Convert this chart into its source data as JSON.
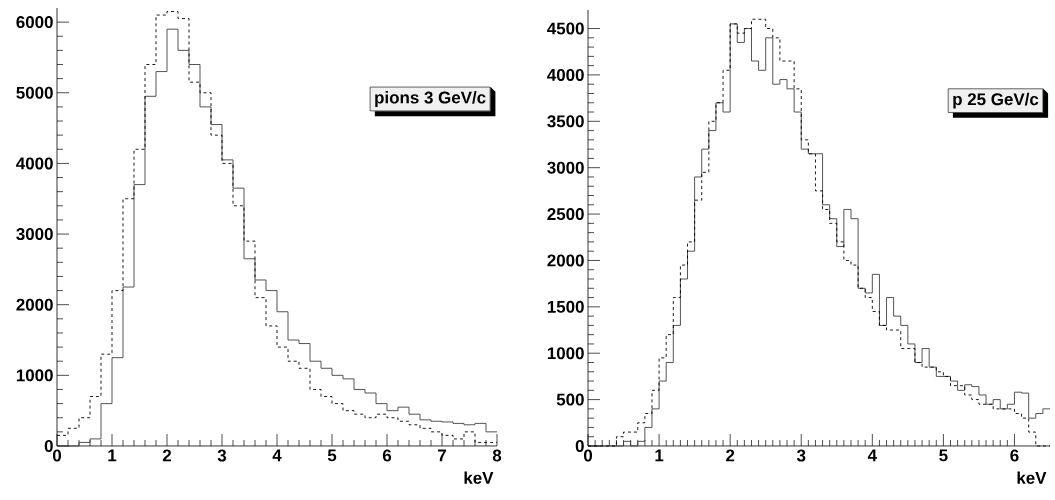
{
  "chart_data": [
    {
      "type": "histogram",
      "xlabel": "keV",
      "annotations": [
        "pions 3 GeV/c"
      ],
      "bins": [
        0,
        0.2,
        0.4,
        0.6,
        0.8,
        1.0,
        1.2,
        1.4,
        1.6,
        1.8,
        2.0,
        2.2,
        2.4,
        2.6,
        2.8,
        3.0,
        3.2,
        3.4,
        3.6,
        3.8,
        4.0,
        4.2,
        4.4,
        4.6,
        4.8,
        5.0,
        5.2,
        5.4,
        5.6,
        5.8,
        6.0,
        6.2,
        6.4,
        6.6,
        6.8,
        7.0,
        7.2,
        7.4,
        7.6,
        7.8,
        8.0
      ],
      "series": [
        {
          "color": "#404040",
          "line_style": "solid",
          "values": [
            0,
            0,
            50,
            100,
            600,
            1250,
            2250,
            3700,
            4950,
            5300,
            5900,
            5600,
            5400,
            4800,
            4550,
            4050,
            3650,
            2650,
            2350,
            2200,
            1900,
            1500,
            1450,
            1200,
            1100,
            1000,
            950,
            800,
            750,
            600,
            500,
            550,
            450,
            370,
            350,
            340,
            320,
            300,
            320,
            200
          ]
        },
        {
          "color": "#000000",
          "line_style": "dashed",
          "values": [
            150,
            250,
            400,
            700,
            1300,
            2200,
            3500,
            4200,
            5400,
            6100,
            6150,
            6050,
            5150,
            5000,
            4400,
            4000,
            3400,
            2900,
            2100,
            1700,
            1400,
            1200,
            1100,
            800,
            700,
            600,
            500,
            450,
            400,
            450,
            400,
            350,
            300,
            250,
            200,
            150,
            100,
            200,
            50,
            50
          ]
        }
      ],
      "xlim": [
        0,
        8
      ],
      "ylim": [
        0,
        6200
      ],
      "xticks": [
        0,
        1,
        2,
        3,
        4,
        5,
        6,
        7,
        8
      ],
      "yticks": [
        0,
        1000,
        2000,
        3000,
        4000,
        5000,
        6000
      ]
    },
    {
      "type": "histogram",
      "xlabel": "keV",
      "annotations": [
        "p 25 GeV/c"
      ],
      "bins": [
        0,
        0.1,
        0.2,
        0.3,
        0.4,
        0.5,
        0.6,
        0.7,
        0.8,
        0.9,
        1.0,
        1.1,
        1.2,
        1.3,
        1.4,
        1.5,
        1.6,
        1.7,
        1.8,
        1.9,
        2.0,
        2.1,
        2.2,
        2.3,
        2.4,
        2.5,
        2.6,
        2.7,
        2.8,
        2.9,
        3.0,
        3.1,
        3.2,
        3.3,
        3.4,
        3.5,
        3.6,
        3.7,
        3.8,
        3.9,
        4.0,
        4.1,
        4.2,
        4.3,
        4.4,
        4.5,
        4.6,
        4.7,
        4.8,
        4.9,
        5.0,
        5.1,
        5.2,
        5.3,
        5.4,
        5.5,
        5.6,
        5.7,
        5.8,
        5.9,
        6.0,
        6.1,
        6.2,
        6.3,
        6.4,
        6.5
      ],
      "series": [
        {
          "color": "#404040",
          "line_style": "solid",
          "values": [
            0,
            0,
            0,
            0,
            0,
            50,
            0,
            50,
            200,
            400,
            700,
            900,
            1300,
            1800,
            2100,
            2900,
            3200,
            3400,
            3700,
            3600,
            4550,
            4350,
            4500,
            4150,
            4050,
            4400,
            3900,
            3950,
            3850,
            3600,
            3200,
            3150,
            3150,
            2600,
            2450,
            2150,
            2550,
            2450,
            1700,
            1650,
            1850,
            1300,
            1600,
            1400,
            1300,
            1100,
            900,
            1050,
            850,
            750,
            750,
            700,
            600,
            660,
            640,
            550,
            450,
            500,
            400,
            450,
            580,
            570,
            300,
            350,
            400
          ]
        },
        {
          "color": "#000000",
          "line_style": "dashed",
          "values": [
            0,
            0,
            0,
            0,
            100,
            150,
            150,
            250,
            350,
            600,
            950,
            1200,
            1600,
            1950,
            2200,
            2650,
            2950,
            3500,
            3700,
            4050,
            4550,
            4450,
            4500,
            4600,
            4600,
            4500,
            4400,
            4150,
            4150,
            3850,
            3300,
            3150,
            2750,
            2550,
            2400,
            2200,
            2000,
            1950,
            1700,
            1600,
            1450,
            1300,
            1250,
            1250,
            1050,
            1050,
            900,
            850,
            850,
            800,
            750,
            650,
            650,
            550,
            500,
            450,
            450,
            400,
            400,
            400,
            350,
            300,
            150,
            0,
            0
          ]
        }
      ],
      "xlim": [
        0,
        6.5
      ],
      "ylim": [
        0,
        4700
      ],
      "xticks": [
        0,
        1,
        2,
        3,
        4,
        5,
        6
      ],
      "yticks": [
        0,
        500,
        1000,
        1500,
        2000,
        2500,
        3000,
        3500,
        4000,
        4500
      ]
    }
  ]
}
